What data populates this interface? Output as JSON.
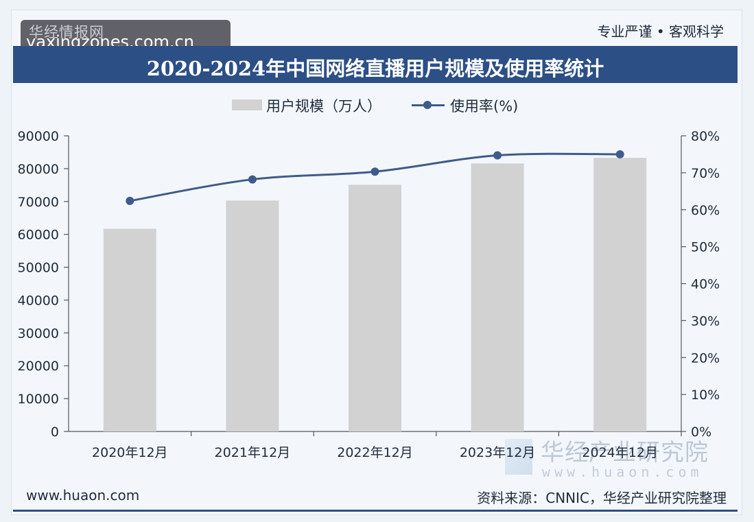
{
  "header": {
    "watermark_ghost": "华经情报网",
    "watermark_url": "yaxingzones.com.cn",
    "tagline": "专业严谨 • 客观科学",
    "title": "2020-2024年中国网络直播用户规模及使用率统计"
  },
  "legend": {
    "bar_label": "用户规模（万人）",
    "line_label": "使用率(%)"
  },
  "chart_data": {
    "type": "bar",
    "title": "2020-2024年中国网络直播用户规模及使用率统计",
    "categories": [
      "2020年12月",
      "2021年12月",
      "2022年12月",
      "2023年12月",
      "2024年12月"
    ],
    "series": [
      {
        "name": "用户规模（万人）",
        "type": "bar",
        "axis": "left",
        "values": [
          61700,
          70300,
          75100,
          81600,
          83300
        ]
      },
      {
        "name": "使用率(%)",
        "type": "line",
        "axis": "right",
        "values": [
          62.4,
          68.2,
          70.3,
          74.7,
          75.0
        ]
      }
    ],
    "y_left": {
      "ticks": [
        "0",
        "10000",
        "20000",
        "30000",
        "40000",
        "50000",
        "60000",
        "70000",
        "80000",
        "90000"
      ],
      "range": [
        0,
        90000
      ]
    },
    "y_right": {
      "ticks": [
        "0%",
        "10%",
        "20%",
        "30%",
        "40%",
        "50%",
        "60%",
        "70%",
        "80%"
      ],
      "range": [
        0,
        80
      ]
    },
    "grid": false,
    "legend_position": "top"
  },
  "colors": {
    "bar": "#d2d2d2",
    "line": "#3f5b8c",
    "banner": "#2c4f86"
  },
  "footer": {
    "site": "www.huaon.com",
    "source": "资料来源：CNNIC，华经产业研究院整理",
    "brand_name": "华经产业研究院",
    "brand_url": "www.huaon.com"
  }
}
